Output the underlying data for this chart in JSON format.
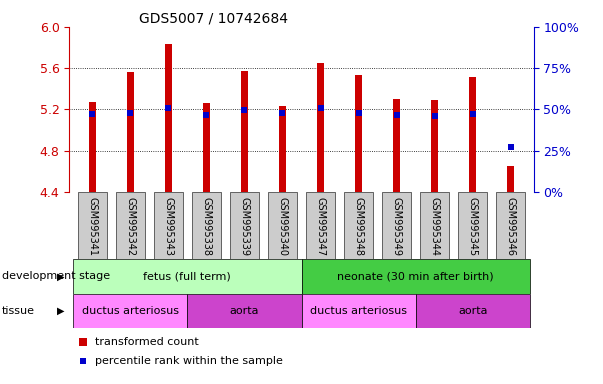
{
  "title": "GDS5007 / 10742684",
  "samples": [
    "GSM995341",
    "GSM995342",
    "GSM995343",
    "GSM995338",
    "GSM995339",
    "GSM995340",
    "GSM995347",
    "GSM995348",
    "GSM995349",
    "GSM995344",
    "GSM995345",
    "GSM995346"
  ],
  "red_values": [
    5.27,
    5.56,
    5.83,
    5.26,
    5.57,
    5.23,
    5.65,
    5.53,
    5.3,
    5.29,
    5.51,
    4.65
  ],
  "blue_values": [
    5.16,
    5.17,
    5.21,
    5.15,
    5.19,
    5.17,
    5.21,
    5.17,
    5.15,
    5.14,
    5.16,
    4.84
  ],
  "ylim_left": [
    4.4,
    6.0
  ],
  "ylim_right": [
    0,
    100
  ],
  "right_ticks": [
    0,
    25,
    50,
    75,
    100
  ],
  "right_tick_labels": [
    "0%",
    "25%",
    "50%",
    "75%",
    "100%"
  ],
  "left_ticks": [
    4.4,
    4.8,
    5.2,
    5.6,
    6.0
  ],
  "bar_bottom": 4.4,
  "bar_width": 0.18,
  "development_stage_groups": [
    {
      "label": "fetus (full term)",
      "start": 0,
      "end": 6,
      "color": "#bbffbb"
    },
    {
      "label": "neonate (30 min after birth)",
      "start": 6,
      "end": 12,
      "color": "#44cc44"
    }
  ],
  "tissue_groups": [
    {
      "label": "ductus arteriosus",
      "start": 0,
      "end": 3,
      "color": "#ff88ff"
    },
    {
      "label": "aorta",
      "start": 3,
      "end": 6,
      "color": "#cc44cc"
    },
    {
      "label": "ductus arteriosus",
      "start": 6,
      "end": 9,
      "color": "#ff88ff"
    },
    {
      "label": "aorta",
      "start": 9,
      "end": 12,
      "color": "#cc44cc"
    }
  ],
  "red_color": "#cc0000",
  "blue_color": "#0000cc",
  "tick_bg_color": "#cccccc",
  "left_axis_color": "#cc0000",
  "right_axis_color": "#0000cc",
  "fig_width": 6.03,
  "fig_height": 3.84,
  "dpi": 100
}
